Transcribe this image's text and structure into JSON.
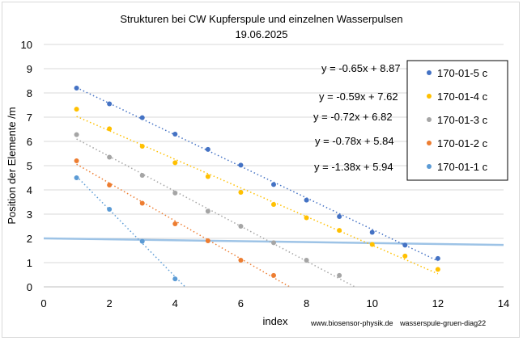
{
  "chart_data": {
    "type": "scatter",
    "title": "Strukturen bei CW Kupferspule und einzelnen Wasserpulsen",
    "subtitle": "19.06.2025",
    "xlabel": "index",
    "ylabel": "Position der Elemente /m",
    "xlim": [
      0,
      14
    ],
    "ylim": [
      0,
      10
    ],
    "xticks": [
      "0",
      "2",
      "4",
      "6",
      "8",
      "10",
      "12",
      "14"
    ],
    "yticks": [
      "0",
      "1",
      "2",
      "3",
      "4",
      "5",
      "6",
      "7",
      "8",
      "9",
      "10"
    ],
    "grid": "horizontal",
    "legend_position": "right",
    "series": [
      {
        "name": "170-01-5 c",
        "color": "#4472c4",
        "x": [
          1,
          2,
          3,
          4,
          5,
          6,
          7,
          8,
          9,
          10,
          11,
          12
        ],
        "y": [
          8.2,
          7.55,
          6.98,
          6.3,
          5.67,
          5.02,
          4.22,
          3.58,
          2.9,
          2.25,
          1.72,
          1.17
        ],
        "trendline": {
          "slope": -0.65,
          "intercept": 8.87,
          "x_range": [
            1,
            12
          ],
          "label": "y = -0.65x + 8.87"
        }
      },
      {
        "name": "170-01-4 c",
        "color": "#ffc000",
        "x": [
          1,
          2,
          3,
          4,
          5,
          6,
          7,
          8,
          9,
          10,
          11,
          12
        ],
        "y": [
          7.33,
          6.52,
          5.8,
          5.12,
          4.55,
          3.9,
          3.4,
          2.85,
          2.33,
          1.75,
          1.27,
          0.72
        ],
        "trendline": {
          "slope": -0.59,
          "intercept": 7.62,
          "x_range": [
            1,
            12
          ],
          "label": "y = -0.59x + 7.62"
        }
      },
      {
        "name": "170-01-3 c",
        "color": "#a5a5a5",
        "x": [
          1,
          2,
          3,
          4,
          5,
          6,
          7,
          8,
          9
        ],
        "y": [
          6.28,
          5.35,
          4.6,
          3.87,
          3.12,
          2.5,
          1.82,
          1.1,
          0.47
        ],
        "trendline": {
          "slope": -0.72,
          "intercept": 6.82,
          "x_range": [
            1,
            9.47
          ],
          "label": "y = -0.72x + 6.82"
        }
      },
      {
        "name": "170-01-2 c",
        "color": "#ed7d31",
        "x": [
          1,
          2,
          3,
          4,
          5,
          6,
          7
        ],
        "y": [
          5.2,
          4.2,
          3.45,
          2.6,
          1.9,
          1.1,
          0.47
        ],
        "trendline": {
          "slope": -0.78,
          "intercept": 5.84,
          "x_range": [
            1,
            7.49
          ],
          "label": "y = -0.78x + 5.84"
        }
      },
      {
        "name": "170-01-1 c",
        "color": "#5b9bd5",
        "x": [
          1,
          2,
          3,
          4
        ],
        "y": [
          4.5,
          3.2,
          1.88,
          0.33
        ],
        "trendline": {
          "slope": -1.38,
          "intercept": 5.94,
          "x_range": [
            1,
            4.3
          ],
          "label": "y = -1.38x + 5.94"
        }
      }
    ],
    "reference_line": {
      "color": "#9dc3e6",
      "x": [
        0,
        14
      ],
      "y": [
        2.0,
        1.73
      ]
    },
    "annotations": [
      "www.biosensor-physik.de",
      "wasserspule-gruen-diag22"
    ]
  }
}
